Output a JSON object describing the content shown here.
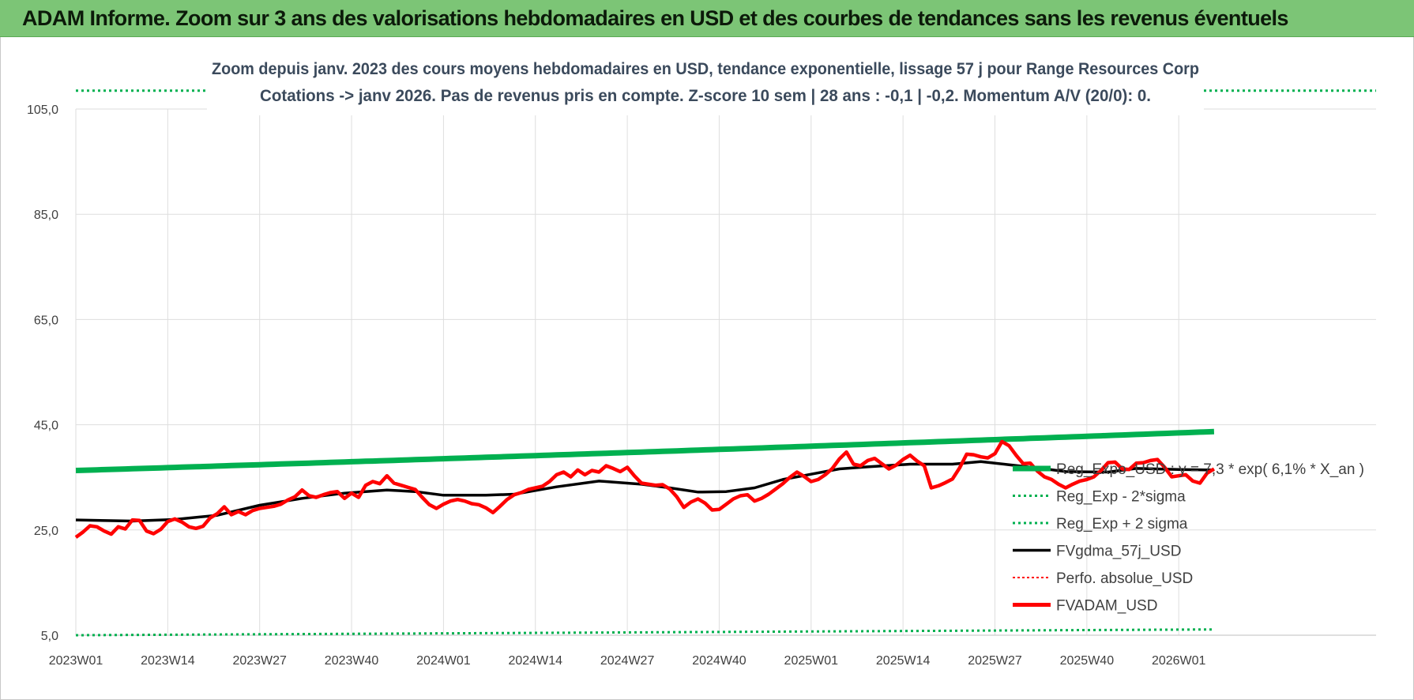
{
  "banner": {
    "title": "ADAM Informe. Zoom sur 3 ans des valorisations hebdomadaires en USD et des courbes de tendances sans les revenus éventuels"
  },
  "chart_data": {
    "type": "line",
    "title": "Zoom depuis janv. 2023 des cours moyens hebdomadaires en USD, tendance exponentielle, lissage 57 j pour Range Resources Corp",
    "subtitle": "Cotations -> janv 2026. Pas de revenus pris en compte. Z-score 10 sem | 28 ans : -0,1 | -0,2. Momentum A/V (20/0): 0.",
    "ylim": [
      5,
      105
    ],
    "yticks": [
      "105,0",
      "85,0",
      "65,0",
      "45,0",
      "25,0",
      "5,0"
    ],
    "ytick_values": [
      105,
      85,
      65,
      45,
      25,
      5
    ],
    "xticks": [
      "2023W01",
      "2023W14",
      "2023W27",
      "2023W40",
      "2024W01",
      "2024W14",
      "2024W27",
      "2024W40",
      "2025W01",
      "2025W14",
      "2025W27",
      "2025W40",
      "2026W01"
    ],
    "xtick_index": [
      0,
      13,
      26,
      39,
      52,
      65,
      78,
      91,
      104,
      117,
      130,
      143,
      156
    ],
    "n_weeks": 162,
    "grid": true,
    "legend_position": "bottom-right",
    "colors": {
      "reg_expo": "#00b050",
      "sigma": "#00b050",
      "fvgdma": "#000000",
      "perfo": "#ff0000",
      "fvadam": "#ff0000"
    },
    "series": [
      {
        "name": "Reg_Expo_USD : y = 7,3 * exp( 6,1% * X_an )",
        "key": "reg_expo",
        "style": "thick",
        "start": 36.3,
        "end": 43.7
      },
      {
        "name": "Reg_Exp - 2*sigma",
        "key": "sigma_low",
        "style": "dotted",
        "start": 5.0,
        "end": 6.1
      },
      {
        "name": "Reg_Exp + 2 sigma",
        "key": "sigma_high",
        "style": "dotted",
        "start": 108.5,
        "end": 108.5
      },
      {
        "name": "FVgdma_57j_USD",
        "key": "fvgdma",
        "style": "line",
        "points": [
          [
            0,
            26.9
          ],
          [
            8,
            26.7
          ],
          [
            14,
            27.0
          ],
          [
            20,
            27.8
          ],
          [
            26,
            29.7
          ],
          [
            32,
            31.0
          ],
          [
            38,
            32.0
          ],
          [
            44,
            32.6
          ],
          [
            48,
            32.3
          ],
          [
            52,
            31.6
          ],
          [
            58,
            31.6
          ],
          [
            62,
            31.8
          ],
          [
            68,
            33.2
          ],
          [
            74,
            34.3
          ],
          [
            80,
            33.7
          ],
          [
            84,
            33.0
          ],
          [
            88,
            32.2
          ],
          [
            92,
            32.3
          ],
          [
            96,
            33.0
          ],
          [
            100,
            34.6
          ],
          [
            104,
            35.6
          ],
          [
            108,
            36.6
          ],
          [
            112,
            37.0
          ],
          [
            118,
            37.5
          ],
          [
            124,
            37.5
          ],
          [
            128,
            38.0
          ],
          [
            132,
            37.4
          ],
          [
            136,
            36.8
          ],
          [
            140,
            36.1
          ],
          [
            146,
            36.0
          ],
          [
            150,
            36.7
          ],
          [
            156,
            36.5
          ],
          [
            161,
            36.4
          ]
        ]
      },
      {
        "name": "Perfo. absolue_USD",
        "key": "perfo",
        "style": "dotted",
        "points": []
      },
      {
        "name": "FVADAM_USD",
        "key": "fvadam",
        "style": "thick",
        "values": [
          23.6,
          24.6,
          25.8,
          25.6,
          24.8,
          24.2,
          25.6,
          25.2,
          26.9,
          26.8,
          24.8,
          24.3,
          25.1,
          26.6,
          27.1,
          26.5,
          25.6,
          25.3,
          25.7,
          27.3,
          28.1,
          29.4,
          27.9,
          28.5,
          27.9,
          28.7,
          29.1,
          29.3,
          29.5,
          29.9,
          30.7,
          31.3,
          32.6,
          31.5,
          31.2,
          31.7,
          32.1,
          32.3,
          31.0,
          32.0,
          31.2,
          33.5,
          34.2,
          33.8,
          35.3,
          33.9,
          33.5,
          33.1,
          32.7,
          31.2,
          29.8,
          29.1,
          29.9,
          30.5,
          30.8,
          30.5,
          30.0,
          29.8,
          29.2,
          28.3,
          29.5,
          30.8,
          31.7,
          32.1,
          32.7,
          33.0,
          33.3,
          34.2,
          35.5,
          36.0,
          35.1,
          36.4,
          35.5,
          36.3,
          36.0,
          37.2,
          36.7,
          36.1,
          36.9,
          35.3,
          33.9,
          33.7,
          33.5,
          33.6,
          32.8,
          31.3,
          29.3,
          30.3,
          30.9,
          30.1,
          28.8,
          28.9,
          29.9,
          30.9,
          31.5,
          31.7,
          30.5,
          31.0,
          31.8,
          32.8,
          33.8,
          35.0,
          36.0,
          35.2,
          34.2,
          34.6,
          35.5,
          36.7,
          38.5,
          39.8,
          37.5,
          37.2,
          38.2,
          38.6,
          37.6,
          36.6,
          37.3,
          38.4,
          39.2,
          38.1,
          37.2,
          33.0,
          33.4,
          34.0,
          34.7,
          36.8,
          39.4,
          39.3,
          38.9,
          38.7,
          39.5,
          41.8,
          41.0,
          39.2,
          37.6,
          37.7,
          36.2,
          35.1,
          34.6,
          33.7,
          33.0,
          33.7,
          34.3,
          34.6,
          35.1,
          36.3,
          37.8,
          37.9,
          36.6,
          36.5,
          37.7,
          37.8,
          38.2,
          38.4,
          36.9,
          35.1,
          35.3,
          35.5,
          34.3,
          33.9,
          35.8,
          36.6
        ]
      }
    ]
  }
}
